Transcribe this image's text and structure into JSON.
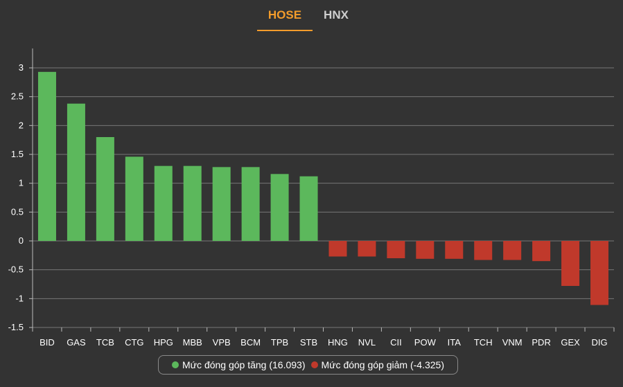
{
  "tabs": [
    {
      "label": "HOSE",
      "active": true
    },
    {
      "label": "HNX",
      "active": false
    }
  ],
  "colors": {
    "increase": "#5cb85c",
    "decrease": "#c0392b",
    "active_tab": "#f39c2b"
  },
  "chart_data": {
    "type": "bar",
    "categories": [
      "BID",
      "GAS",
      "TCB",
      "CTG",
      "HPG",
      "MBB",
      "VPB",
      "BCM",
      "TPB",
      "STB",
      "HNG",
      "NVL",
      "CII",
      "POW",
      "ITA",
      "TCH",
      "VNM",
      "PDR",
      "GEX",
      "DIG"
    ],
    "values": [
      2.93,
      2.38,
      1.8,
      1.46,
      1.3,
      1.3,
      1.28,
      1.28,
      1.16,
      1.12,
      -0.27,
      -0.27,
      -0.3,
      -0.31,
      -0.31,
      -0.33,
      -0.33,
      -0.35,
      -0.78,
      -1.11
    ],
    "ylim": [
      -1.5,
      3.3
    ],
    "yticks": [
      3,
      2.5,
      2,
      1.5,
      1,
      0.5,
      0,
      -0.5,
      -1,
      -1.5
    ],
    "ytick_labels": [
      "3",
      "2.5",
      "2",
      "1.5",
      "1",
      "0.5",
      "0",
      "-0.5",
      "-1",
      "-1.5"
    ],
    "grid": true,
    "legend": [
      {
        "label": "Mức đóng góp tăng (16.093)",
        "color": "#5cb85c"
      },
      {
        "label": "Mức đóng góp giảm (-4.325)",
        "color": "#c0392b"
      }
    ],
    "legend_placement": "bottom-center"
  }
}
